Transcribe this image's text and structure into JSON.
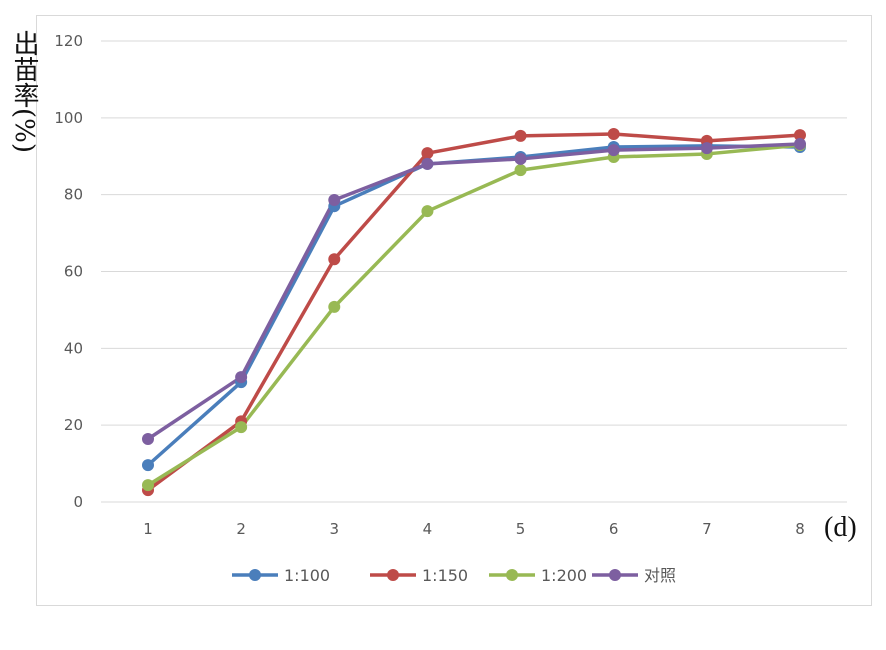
{
  "chart_data": {
    "type": "line",
    "title": "",
    "xlabel": "(d)",
    "ylabel": "出苗率(%)",
    "categories": [
      "1",
      "2",
      "3",
      "4",
      "5",
      "6",
      "7",
      "8"
    ],
    "ylim": [
      0,
      120
    ],
    "yticks": [
      "0",
      "20",
      "40",
      "60",
      "80",
      "100",
      "120"
    ],
    "grid": true,
    "legend_position": "bottom",
    "series": [
      {
        "name": "1:100",
        "color": "#4a7ebb",
        "values": [
          9.6,
          31.2,
          77,
          88,
          89.8,
          92.4,
          92.7,
          92.4
        ]
      },
      {
        "name": "1:150",
        "color": "#be4b48",
        "values": [
          3.1,
          21,
          63.2,
          90.8,
          95.3,
          95.8,
          94,
          95.5
        ]
      },
      {
        "name": "1:200",
        "color": "#98b954",
        "values": [
          4.4,
          19.5,
          50.8,
          75.7,
          86.4,
          89.8,
          90.6,
          92.9
        ]
      },
      {
        "name": "对照",
        "color": "#7d5fa0",
        "values": [
          16.4,
          32.5,
          78.6,
          88,
          89.3,
          91.6,
          92.1,
          93.2
        ]
      }
    ]
  }
}
